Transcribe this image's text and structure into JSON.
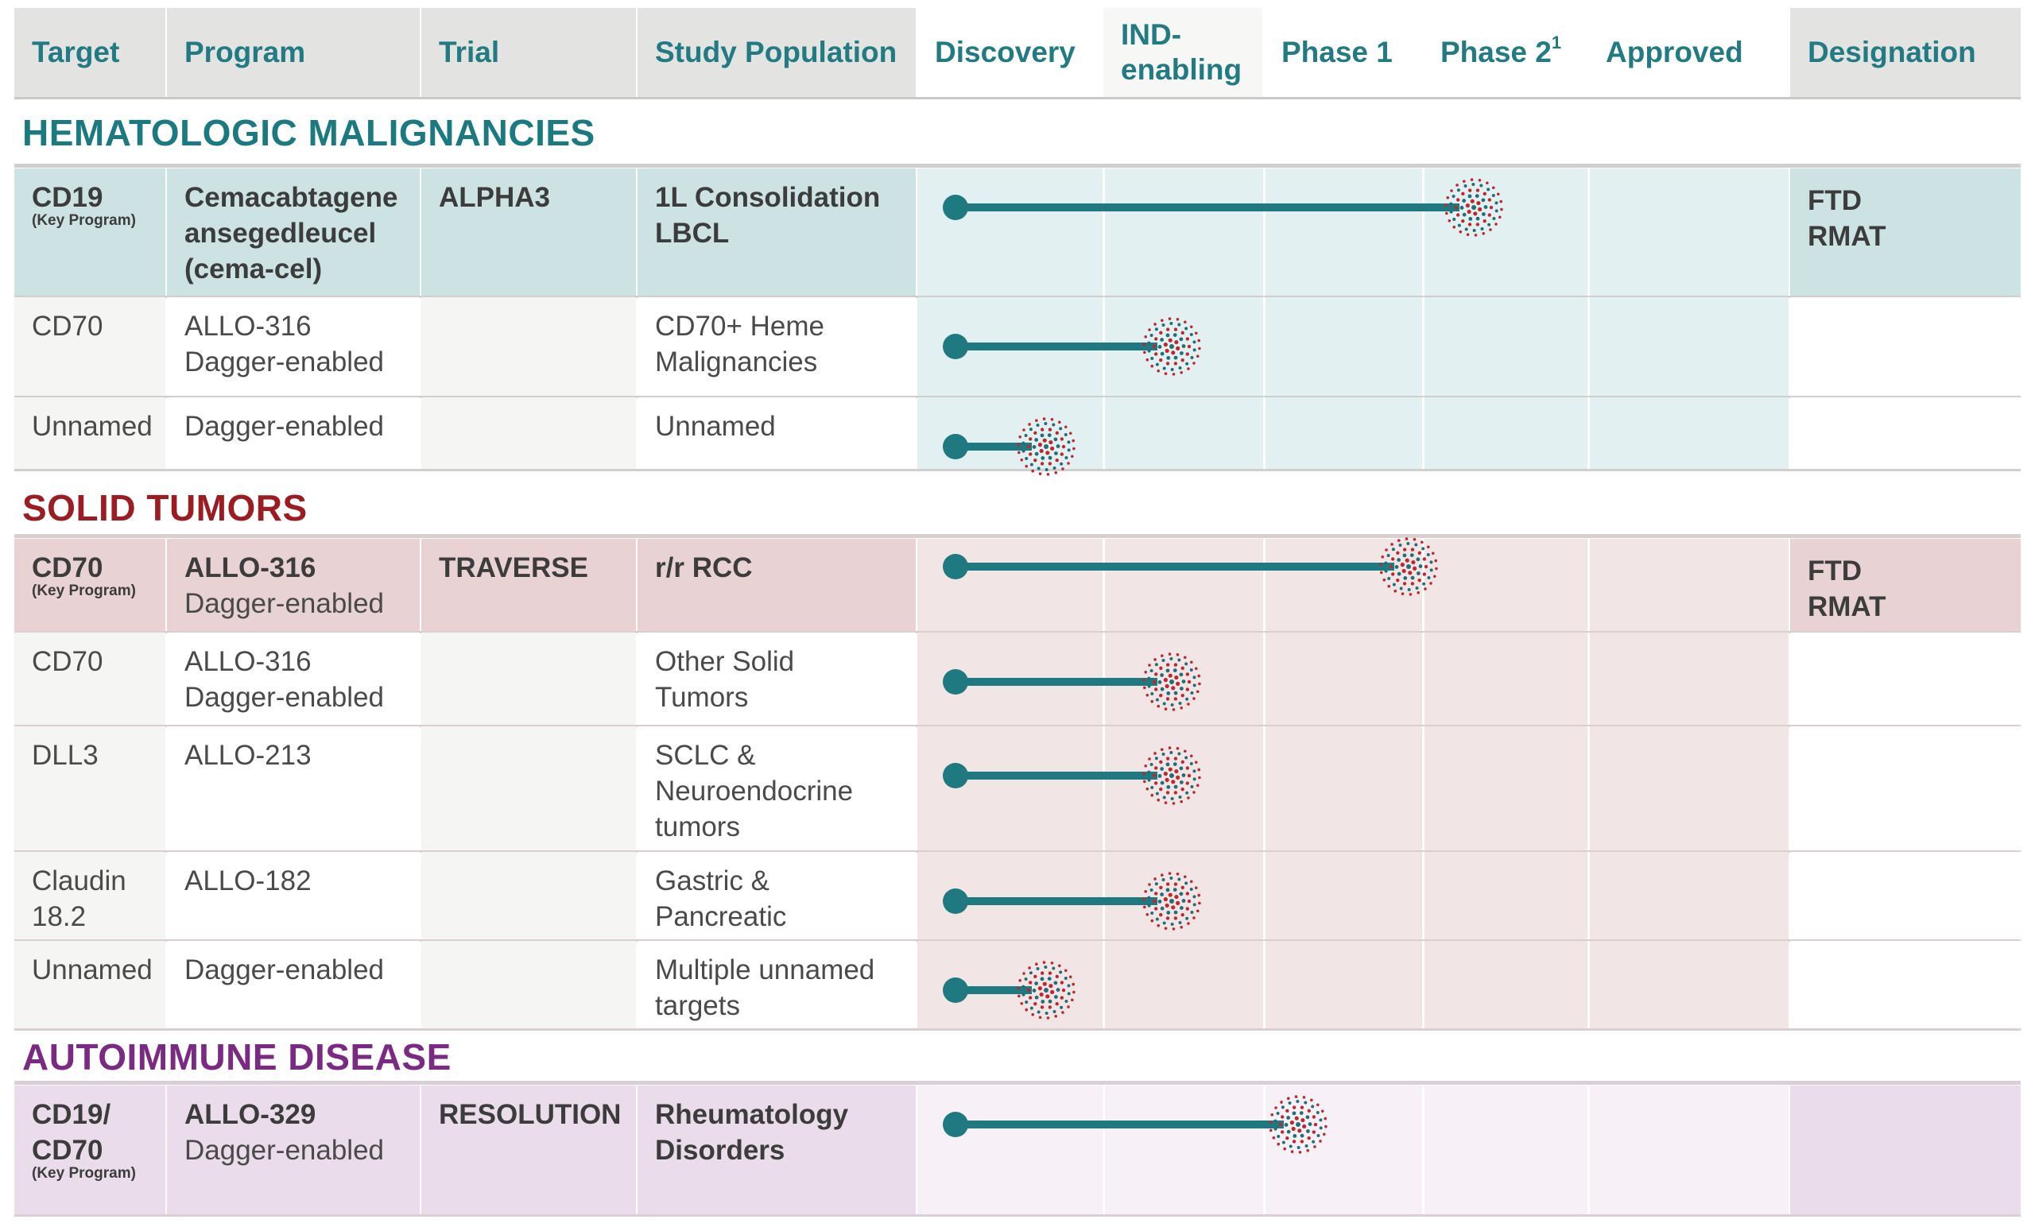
{
  "header": {
    "columns": [
      "Target",
      "Program",
      "Trial",
      "Study Population",
      "Discovery",
      "IND-\nenabling",
      "Phase 1",
      "Phase 2",
      "Approved",
      "Designation"
    ],
    "phase2_footnote": "1"
  },
  "colors": {
    "teal": "#1e7a80",
    "heme_title": "#1a7a80",
    "solid_title": "#9b1d23",
    "auto_title": "#7a2a82",
    "marker_red": "#c0272d",
    "marker_teal": "#1e6f78"
  },
  "sections": [
    {
      "title": "HEMATOLOGIC MALIGNANCIES",
      "rows": [
        {
          "target": "CD19",
          "target_note": "(Key Program)",
          "program": "Cemacabtagene\nansegedleucel\n(cema-cel)",
          "program_sub": "",
          "trial": "ALPHA3",
          "population": "1L Consolidation\nLBCL",
          "designation": "FTD\nRMAT",
          "key": true,
          "phase_progress": 3.4
        },
        {
          "target": "CD70",
          "target_note": "",
          "program": "ALLO-316",
          "program_sub": "Dagger-enabled",
          "trial": "",
          "population": "CD70+ Heme\nMalignancies",
          "designation": "",
          "key": false,
          "phase_progress": 1.5
        },
        {
          "target": "Unnamed",
          "target_note": "",
          "program": "Dagger-enabled",
          "program_sub": "",
          "trial": "",
          "population": "Unnamed",
          "designation": "",
          "key": false,
          "phase_progress": 0.75
        }
      ]
    },
    {
      "title": "SOLID TUMORS",
      "rows": [
        {
          "target": "CD70",
          "target_note": "(Key Program)",
          "program": "ALLO-316",
          "program_sub": "Dagger-enabled",
          "trial": "TRAVERSE",
          "population": "r/r RCC",
          "designation": "FTD\nRMAT",
          "key": true,
          "phase_progress": 3.0
        },
        {
          "target": "CD70",
          "target_note": "",
          "program": "ALLO-316",
          "program_sub": "Dagger-enabled",
          "trial": "",
          "population": "Other Solid\nTumors",
          "designation": "",
          "key": false,
          "phase_progress": 1.5
        },
        {
          "target": "DLL3",
          "target_note": "",
          "program": "ALLO-213",
          "program_sub": "",
          "trial": "",
          "population": "SCLC &\nNeuroendocrine\ntumors",
          "designation": "",
          "key": false,
          "phase_progress": 1.5
        },
        {
          "target": "Claudin\n18.2",
          "target_note": "",
          "program": "ALLO-182",
          "program_sub": "",
          "trial": "",
          "population": "Gastric &\nPancreatic",
          "designation": "",
          "key": false,
          "phase_progress": 1.5
        },
        {
          "target": "Unnamed",
          "target_note": "",
          "program": "Dagger-enabled",
          "program_sub": "",
          "trial": "",
          "population": "Multiple unnamed\ntargets",
          "designation": "",
          "key": false,
          "phase_progress": 0.75
        }
      ]
    },
    {
      "title": "AUTOIMMUNE DISEASE",
      "rows": [
        {
          "target": "CD19/\nCD70",
          "target_note": "(Key Program)",
          "program": "ALLO-329",
          "program_sub": "Dagger-enabled",
          "trial": "RESOLUTION",
          "population": "Rheumatology\nDisorders",
          "designation": "",
          "key": true,
          "phase_progress": 2.3
        }
      ]
    }
  ]
}
